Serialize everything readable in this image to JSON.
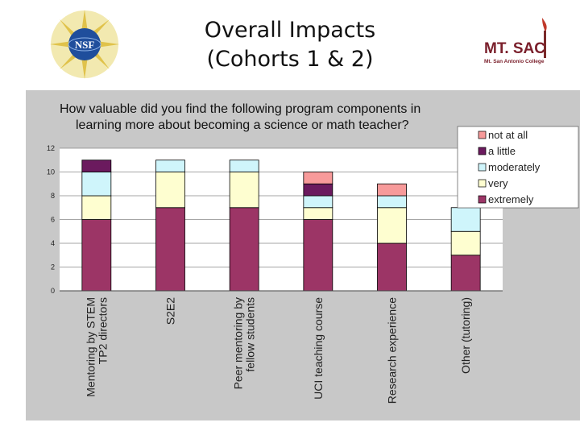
{
  "slide": {
    "title_line1": "Overall Impacts",
    "title_line2": "(Cohorts 1 & 2)"
  },
  "logos": {
    "left": {
      "text": "NSF"
    },
    "right": {
      "text": "MT. SAC",
      "subtext": "Mt. San Antonio College"
    }
  },
  "colors": {
    "not_at_all": "#f79a9a",
    "a_little": "#6b1a5e",
    "moderately": "#cff5fb",
    "very": "#fefed0",
    "extremely": "#9c3566",
    "panel": "#c8c8c8",
    "plot": "#ffffff"
  },
  "chart_data": {
    "type": "bar",
    "stacked": true,
    "title_lines": [
      "How valuable did you find the following program components in",
      "learning more about becoming a science or math teacher?"
    ],
    "categories": [
      [
        "Mentoring by STEM",
        "TP2 directors"
      ],
      [
        "S2E2"
      ],
      [
        "Peer mentoring by",
        "fellow students"
      ],
      [
        "UCI teaching course"
      ],
      [
        "Research experience"
      ],
      [
        "Other (tutoring)"
      ]
    ],
    "series": [
      {
        "name": "extremely",
        "color": "#9c3566",
        "values": [
          6,
          7,
          7,
          6,
          4,
          3
        ]
      },
      {
        "name": "very",
        "color": "#fefed0",
        "values": [
          2,
          3,
          3,
          1,
          3,
          2
        ]
      },
      {
        "name": "moderately",
        "color": "#cff5fb",
        "values": [
          2,
          1,
          1,
          1,
          1,
          2
        ]
      },
      {
        "name": "a little",
        "color": "#6b1a5e",
        "values": [
          1,
          0,
          0,
          1,
          0,
          0
        ]
      },
      {
        "name": "not at all",
        "color": "#f79a9a",
        "values": [
          0,
          0,
          0,
          1,
          1,
          0
        ]
      }
    ],
    "legend_order": [
      "not at all",
      "a little",
      "moderately",
      "very",
      "extremely"
    ],
    "yticks": [
      0,
      2,
      4,
      6,
      8,
      10,
      12
    ],
    "ylim": [
      0,
      12
    ],
    "xlabel": "",
    "ylabel": "",
    "legend_position": "right"
  }
}
